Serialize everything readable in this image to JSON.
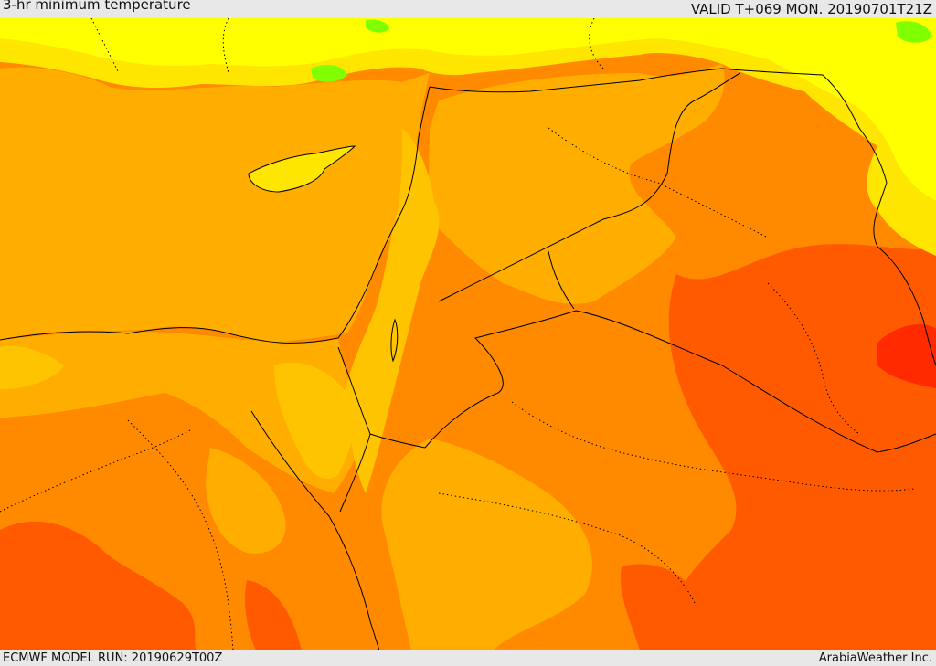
{
  "header": {
    "title": "3-hr minimum temperature",
    "valid": "VALID T+069 MON. 20190701T21Z"
  },
  "footer": {
    "model_run": "ECMWF MODEL RUN: 20190629T00Z",
    "credit": "ArabiaWeather Inc."
  },
  "colors": {
    "sea": "#ffae00",
    "warm": "#ff8a00",
    "hot": "#ff5a00",
    "hottest": "#ff2a00",
    "mild": "#ffc400",
    "cool": "#ffe600",
    "cooler": "#ffff00",
    "coolest": "#80ff00",
    "border": "#000000"
  }
}
